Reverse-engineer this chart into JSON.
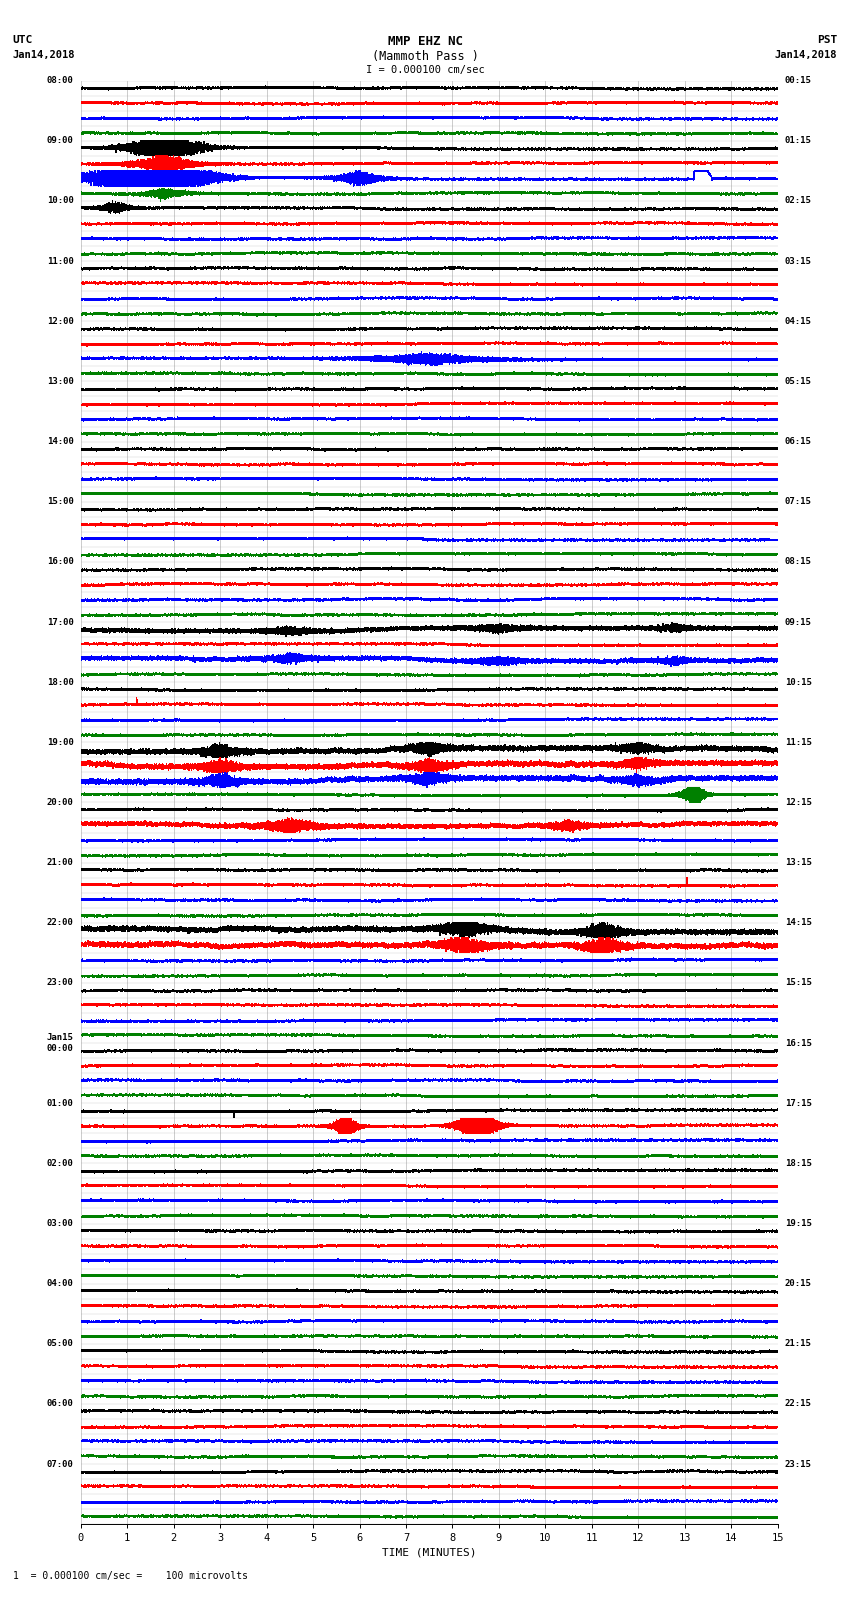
{
  "title_line1": "MMP EHZ NC",
  "title_line2": "(Mammoth Pass )",
  "scale_label": "I = 0.000100 cm/sec",
  "bottom_label": "1  = 0.000100 cm/sec =    100 microvolts",
  "xlabel": "TIME (MINUTES)",
  "colors": [
    "black",
    "red",
    "blue",
    "green"
  ],
  "n_rows": 96,
  "minutes": 15,
  "sample_rate": 40,
  "background": "white",
  "grid_color": "#999999",
  "line_width": 0.35,
  "noise_base": 0.015,
  "utc_times": [
    "08:00",
    "",
    "",
    "",
    "09:00",
    "",
    "",
    "",
    "10:00",
    "",
    "",
    "",
    "11:00",
    "",
    "",
    "",
    "12:00",
    "",
    "",
    "",
    "13:00",
    "",
    "",
    "",
    "14:00",
    "",
    "",
    "",
    "15:00",
    "",
    "",
    "",
    "16:00",
    "",
    "",
    "",
    "17:00",
    "",
    "",
    "",
    "18:00",
    "",
    "",
    "",
    "19:00",
    "",
    "",
    "",
    "20:00",
    "",
    "",
    "",
    "21:00",
    "",
    "",
    "",
    "22:00",
    "",
    "",
    "",
    "23:00",
    "",
    "",
    "",
    "Jan15\n00:00",
    "",
    "",
    "",
    "01:00",
    "",
    "",
    "",
    "02:00",
    "",
    "",
    "",
    "03:00",
    "",
    "",
    "",
    "04:00",
    "",
    "",
    "",
    "05:00",
    "",
    "",
    "",
    "06:00",
    "",
    "",
    "",
    "07:00",
    "",
    "",
    ""
  ],
  "pst_times": [
    "00:15",
    "",
    "",
    "",
    "01:15",
    "",
    "",
    "",
    "02:15",
    "",
    "",
    "",
    "03:15",
    "",
    "",
    "",
    "04:15",
    "",
    "",
    "",
    "05:15",
    "",
    "",
    "",
    "06:15",
    "",
    "",
    "",
    "07:15",
    "",
    "",
    "",
    "08:15",
    "",
    "",
    "",
    "09:15",
    "",
    "",
    "",
    "10:15",
    "",
    "",
    "",
    "11:15",
    "",
    "",
    "",
    "12:15",
    "",
    "",
    "",
    "13:15",
    "",
    "",
    "",
    "14:15",
    "",
    "",
    "",
    "15:15",
    "",
    "",
    "",
    "16:15",
    "",
    "",
    "",
    "17:15",
    "",
    "",
    "",
    "18:15",
    "",
    "",
    "",
    "19:15",
    "",
    "",
    "",
    "20:15",
    "",
    "",
    "",
    "21:15",
    "",
    "",
    "",
    "22:15",
    "",
    "",
    "",
    "23:15",
    "",
    "",
    ""
  ]
}
